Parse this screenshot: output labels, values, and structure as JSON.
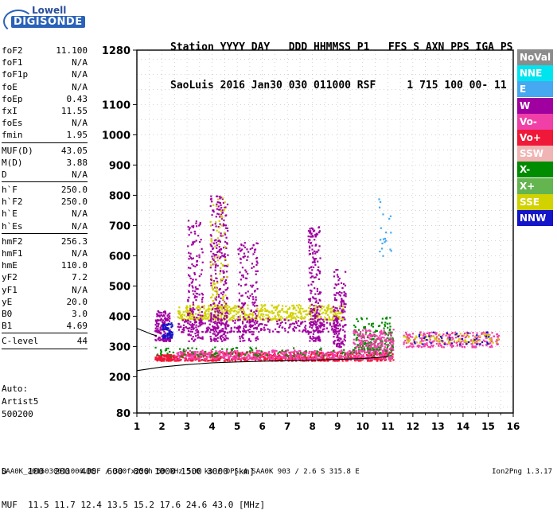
{
  "logo": {
    "line1": "Lowell",
    "line2": "DIGISONDE"
  },
  "header": {
    "line1": "Station YYYY DAY   DDD HHMMSS P1   FFS S AXN PPS IGA PS",
    "line2": "SaoLuis 2016 Jan30 030 011000 RSF     1 715 100 00- 11"
  },
  "params": [
    {
      "name": "foF2",
      "value": "11.100"
    },
    {
      "name": "foF1",
      "value": "N/A"
    },
    {
      "name": "foF1p",
      "value": "N/A"
    },
    {
      "name": "foE",
      "value": "N/A"
    },
    {
      "name": "foEp",
      "value": "0.43"
    },
    {
      "name": "fxI",
      "value": "11.55"
    },
    {
      "name": "foEs",
      "value": "N/A"
    },
    {
      "name": "fmin",
      "value": "1.95"
    },
    {
      "sep": true
    },
    {
      "name": "MUF(D)",
      "value": "43.05"
    },
    {
      "name": "M(D)",
      "value": "3.88"
    },
    {
      "name": "D",
      "value": "N/A"
    },
    {
      "sep": true
    },
    {
      "name": "h`F",
      "value": "250.0"
    },
    {
      "name": "h`F2",
      "value": "250.0"
    },
    {
      "name": "h`E",
      "value": "N/A"
    },
    {
      "name": "h`Es",
      "value": "N/A"
    },
    {
      "sep": true
    },
    {
      "name": "hmF2",
      "value": "256.3"
    },
    {
      "name": "hmF1",
      "value": "N/A"
    },
    {
      "name": "hmE",
      "value": "110.0"
    },
    {
      "name": "yF2",
      "value": "7.2"
    },
    {
      "name": "yF1",
      "value": "N/A"
    },
    {
      "name": "yE",
      "value": "20.0"
    },
    {
      "name": "B0",
      "value": "3.0"
    },
    {
      "name": "B1",
      "value": "4.69"
    },
    {
      "sep": true
    },
    {
      "name": "C-level",
      "value": "44"
    },
    {
      "sep": true
    }
  ],
  "auto": {
    "line1": "Auto:",
    "line2": "Artist5",
    "line3": "500200"
  },
  "bottom": {
    "line1": "D    100  200  400  600  800 1000 1500 3000 [km]",
    "line2": "MUF  11.5 11.7 12.4 13.5 15.2 17.6 24.6 43.0 [MHz]"
  },
  "footer": {
    "left": "SAA0K_2016030011000.RSF / 300fx256h 50 kHz 5.0 km / DPS-4 SAA0K 903 / 2.6 S 315.8 E",
    "right": "Ion2Png 1.3.17"
  },
  "legend": [
    {
      "label": "NoVal",
      "color": "#8c8c8c"
    },
    {
      "label": "NNE",
      "color": "#00e4f0"
    },
    {
      "label": "E",
      "color": "#46a8f0"
    },
    {
      "label": "W",
      "color": "#a000a0"
    },
    {
      "label": "Vo-",
      "color": "#f040a8"
    },
    {
      "label": "Vo+",
      "color": "#f01838"
    },
    {
      "label": "SSW",
      "color": "#f0b4b4"
    },
    {
      "label": "X-",
      "color": "#008c00"
    },
    {
      "label": "X+",
      "color": "#64b450"
    },
    {
      "label": "SSE",
      "color": "#d2d200"
    },
    {
      "label": "NNW",
      "color": "#1414c8"
    }
  ],
  "chart_data": {
    "type": "scatter",
    "xlim": [
      1,
      16
    ],
    "ylim": [
      80,
      1280
    ],
    "x_ticks": [
      1,
      2,
      3,
      4,
      5,
      6,
      7,
      8,
      9,
      10,
      11,
      12,
      13,
      14,
      15,
      16
    ],
    "y_ticks": [
      80,
      200,
      300,
      400,
      500,
      600,
      700,
      800,
      900,
      1000,
      1100,
      1280
    ],
    "grid": true,
    "legend_position": "right",
    "clusters": [
      {
        "x": [
          1.7,
          2.5
        ],
        "y": [
          255,
          275
        ],
        "color": "#f01838",
        "density": 120
      },
      {
        "x": [
          2.5,
          11.2
        ],
        "y": [
          255,
          285
        ],
        "color": "#f01838",
        "density": 700
      },
      {
        "x": [
          2.5,
          11.2
        ],
        "y": [
          260,
          290
        ],
        "color": "#f040a8",
        "density": 500
      },
      {
        "x": [
          1.7,
          2.3
        ],
        "y": [
          320,
          420
        ],
        "color": "#a000a0",
        "density": 160
      },
      {
        "x": [
          2.0,
          2.4
        ],
        "y": [
          330,
          380
        ],
        "color": "#1414c8",
        "density": 60
      },
      {
        "x": [
          2.6,
          9.2
        ],
        "y": [
          390,
          440
        ],
        "color": "#d2d200",
        "density": 550
      },
      {
        "x": [
          2.6,
          9.2
        ],
        "y": [
          350,
          395
        ],
        "color": "#a000a0",
        "density": 300
      },
      {
        "x": [
          3.9,
          4.6
        ],
        "y": [
          320,
          800
        ],
        "color": "#a000a0",
        "density": 300
      },
      {
        "x": [
          3.0,
          3.6
        ],
        "y": [
          320,
          720
        ],
        "color": "#a000a0",
        "density": 160
      },
      {
        "x": [
          5.0,
          5.8
        ],
        "y": [
          320,
          650
        ],
        "color": "#a000a0",
        "density": 160
      },
      {
        "x": [
          7.8,
          8.3
        ],
        "y": [
          320,
          700
        ],
        "color": "#a000a0",
        "density": 200
      },
      {
        "x": [
          8.8,
          9.3
        ],
        "y": [
          300,
          560
        ],
        "color": "#a000a0",
        "density": 140
      },
      {
        "x": [
          3.9,
          4.6
        ],
        "y": [
          420,
          800
        ],
        "color": "#d2d200",
        "density": 80
      },
      {
        "x": [
          9.6,
          11.2
        ],
        "y": [
          290,
          400
        ],
        "color": "#008c00",
        "density": 160
      },
      {
        "x": [
          9.6,
          11.2
        ],
        "y": [
          285,
          360
        ],
        "color": "#f040a8",
        "density": 180
      },
      {
        "x": [
          11.6,
          15.4
        ],
        "y": [
          300,
          350
        ],
        "color": "#f040a8",
        "density": 260
      },
      {
        "x": [
          11.6,
          15.4
        ],
        "y": [
          315,
          345
        ],
        "color": "#d2d200",
        "density": 80
      },
      {
        "x": [
          12.0,
          15.0
        ],
        "y": [
          310,
          350
        ],
        "color": "#1414c8",
        "density": 40
      },
      {
        "x": [
          10.6,
          11.2
        ],
        "y": [
          600,
          800
        ],
        "color": "#46a8f0",
        "density": 20
      },
      {
        "x": [
          1.7,
          11.2
        ],
        "y": [
          270,
          300
        ],
        "color": "#008c00",
        "density": 120
      }
    ],
    "trace": [
      {
        "x": 1.0,
        "y": 220
      },
      {
        "x": 2,
        "y": 232
      },
      {
        "x": 3,
        "y": 240
      },
      {
        "x": 4,
        "y": 246
      },
      {
        "x": 5,
        "y": 249
      },
      {
        "x": 6,
        "y": 251
      },
      {
        "x": 7,
        "y": 253
      },
      {
        "x": 8,
        "y": 255
      },
      {
        "x": 9,
        "y": 257
      },
      {
        "x": 10,
        "y": 260
      },
      {
        "x": 11,
        "y": 266
      }
    ],
    "trace2": [
      {
        "x": 1.0,
        "y": 360
      },
      {
        "x": 1.3,
        "y": 350
      },
      {
        "x": 1.6,
        "y": 340
      },
      {
        "x": 1.8,
        "y": 335
      }
    ]
  }
}
